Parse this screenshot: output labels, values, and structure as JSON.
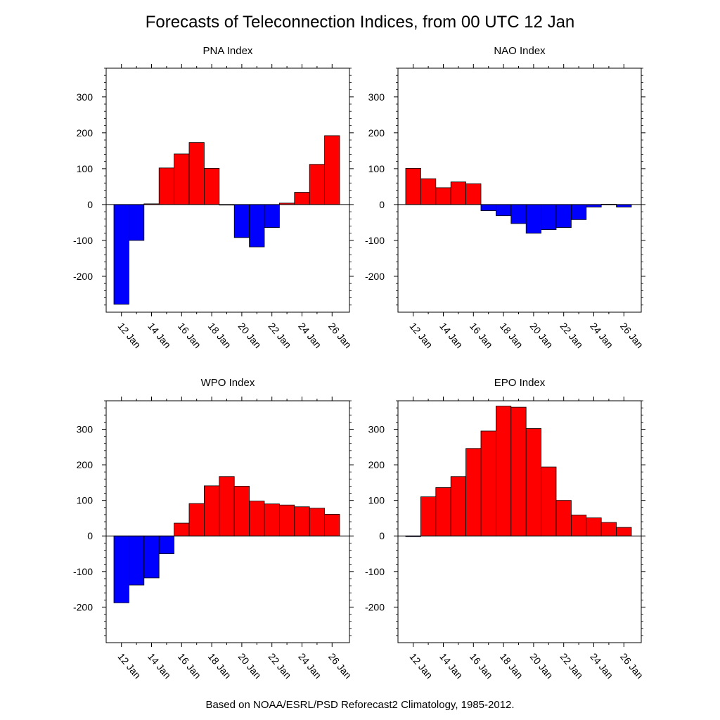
{
  "title": "Forecasts of Teleconnection Indices, from 00 UTC 12 Jan",
  "footer": "Based on NOAA/ESRL/PSD Reforecast2 Climatology, 1985-2012.",
  "colors": {
    "positive": "#ff0000",
    "negative": "#0000ff",
    "axis": "#000000",
    "background": "#ffffff"
  },
  "chart_data": [
    {
      "type": "bar",
      "title": "PNA Index",
      "xlabel": "",
      "ylabel": "",
      "ylim": [
        -300,
        380
      ],
      "yticks": [
        300,
        200,
        100,
        0,
        -100,
        -200
      ],
      "ytick_labels": [
        "300",
        "200",
        "100",
        "0",
        "-100",
        "-200"
      ],
      "xticks": [
        "12 Jan",
        "14 Jan",
        "16 Jan",
        "18 Jan",
        "20 Jan",
        "22 Jan",
        "24 Jan",
        "26 Jan"
      ],
      "categories": [
        "12 Jan",
        "13 Jan",
        "14 Jan",
        "15 Jan",
        "16 Jan",
        "17 Jan",
        "18 Jan",
        "19 Jan",
        "20 Jan",
        "21 Jan",
        "22 Jan",
        "23 Jan",
        "24 Jan",
        "25 Jan",
        "26 Jan"
      ],
      "values": [
        -278,
        -100,
        2,
        102,
        141,
        173,
        101,
        0,
        -92,
        -118,
        -64,
        4,
        34,
        112,
        192
      ]
    },
    {
      "type": "bar",
      "title": "NAO Index",
      "xlabel": "",
      "ylabel": "",
      "ylim": [
        -300,
        380
      ],
      "yticks": [
        300,
        200,
        100,
        0,
        -100,
        -200
      ],
      "ytick_labels": [
        "300",
        "200",
        "100",
        "0",
        "-100",
        "-200"
      ],
      "xticks": [
        "12 Jan",
        "14 Jan",
        "16 Jan",
        "18 Jan",
        "20 Jan",
        "22 Jan",
        "24 Jan",
        "26 Jan"
      ],
      "categories": [
        "12 Jan",
        "13 Jan",
        "14 Jan",
        "15 Jan",
        "16 Jan",
        "17 Jan",
        "18 Jan",
        "19 Jan",
        "20 Jan",
        "21 Jan",
        "22 Jan",
        "23 Jan",
        "24 Jan",
        "25 Jan",
        "26 Jan"
      ],
      "values": [
        101,
        72,
        47,
        63,
        58,
        -17,
        -31,
        -53,
        -80,
        -70,
        -64,
        -42,
        -7,
        1,
        -7
      ]
    },
    {
      "type": "bar",
      "title": "WPO Index",
      "xlabel": "",
      "ylabel": "",
      "ylim": [
        -300,
        380
      ],
      "yticks": [
        300,
        200,
        100,
        0,
        -100,
        -200
      ],
      "ytick_labels": [
        "300",
        "200",
        "100",
        "0",
        "-100",
        "-200"
      ],
      "xticks": [
        "12 Jan",
        "14 Jan",
        "16 Jan",
        "18 Jan",
        "20 Jan",
        "22 Jan",
        "24 Jan",
        "26 Jan"
      ],
      "categories": [
        "12 Jan",
        "13 Jan",
        "14 Jan",
        "15 Jan",
        "16 Jan",
        "17 Jan",
        "18 Jan",
        "19 Jan",
        "20 Jan",
        "21 Jan",
        "22 Jan",
        "23 Jan",
        "24 Jan",
        "25 Jan",
        "26 Jan"
      ],
      "values": [
        -188,
        -138,
        -118,
        -50,
        36,
        91,
        141,
        167,
        140,
        98,
        90,
        87,
        82,
        78,
        61
      ]
    },
    {
      "type": "bar",
      "title": "EPO Index",
      "xlabel": "",
      "ylabel": "",
      "ylim": [
        -300,
        380
      ],
      "yticks": [
        300,
        200,
        100,
        0,
        -100,
        -200
      ],
      "ytick_labels": [
        "300",
        "200",
        "100",
        "0",
        "-100",
        "-200"
      ],
      "xticks": [
        "12 Jan",
        "14 Jan",
        "16 Jan",
        "18 Jan",
        "20 Jan",
        "22 Jan",
        "24 Jan",
        "26 Jan"
      ],
      "categories": [
        "12 Jan",
        "13 Jan",
        "14 Jan",
        "15 Jan",
        "16 Jan",
        "17 Jan",
        "18 Jan",
        "19 Jan",
        "20 Jan",
        "21 Jan",
        "22 Jan",
        "23 Jan",
        "24 Jan",
        "25 Jan",
        "26 Jan"
      ],
      "values": [
        -2,
        110,
        136,
        167,
        246,
        295,
        365,
        362,
        302,
        194,
        100,
        59,
        51,
        38,
        24
      ]
    }
  ]
}
